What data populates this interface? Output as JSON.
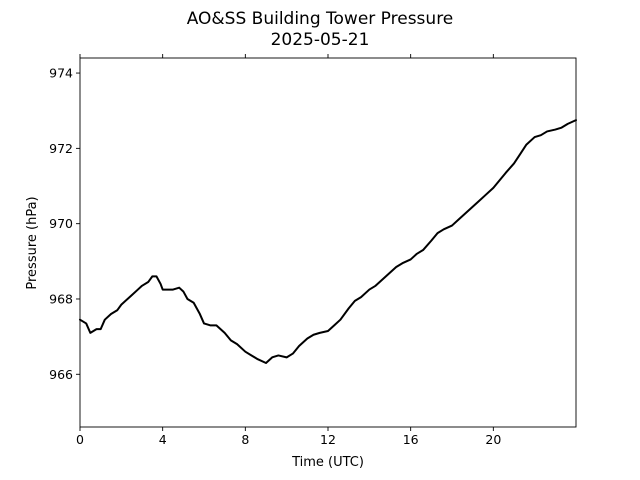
{
  "chart_data": {
    "type": "line",
    "title": "AO&SS Building Tower Pressure",
    "subtitle": "2025-05-21",
    "xlabel": "Time (UTC)",
    "ylabel": "Pressure (hPa)",
    "xlim": [
      0,
      24
    ],
    "ylim": [
      964.6,
      974.4
    ],
    "xticks": [
      0,
      4,
      8,
      12,
      16,
      20
    ],
    "yticks": [
      966,
      968,
      970,
      972,
      974
    ],
    "grid": false,
    "line_color": "#000000",
    "series": [
      {
        "x": [
          0.0,
          0.3,
          0.5,
          0.8,
          1.0,
          1.2,
          1.5,
          1.8,
          2.0,
          2.3,
          2.5,
          2.8,
          3.0,
          3.3,
          3.5,
          3.7,
          3.9,
          4.0,
          4.2,
          4.5,
          4.8,
          5.0,
          5.2,
          5.5,
          5.8,
          6.0,
          6.3,
          6.6,
          7.0,
          7.3,
          7.6,
          8.0,
          8.3,
          8.6,
          9.0,
          9.3,
          9.6,
          10.0,
          10.3,
          10.6,
          11.0,
          11.3,
          11.6,
          12.0,
          12.3,
          12.6,
          13.0,
          13.3,
          13.6,
          14.0,
          14.3,
          14.6,
          15.0,
          15.3,
          15.6,
          16.0,
          16.3,
          16.6,
          17.0,
          17.3,
          17.6,
          18.0,
          18.3,
          18.6,
          19.0,
          19.3,
          19.6,
          20.0,
          20.3,
          20.6,
          21.0,
          21.3,
          21.6,
          22.0,
          22.3,
          22.6,
          23.0,
          23.3,
          23.6,
          24.0
        ],
        "values": [
          967.45,
          967.35,
          967.1,
          967.2,
          967.2,
          967.45,
          967.6,
          967.7,
          967.85,
          968.0,
          968.1,
          968.25,
          968.35,
          968.45,
          968.6,
          968.6,
          968.4,
          968.25,
          968.25,
          968.25,
          968.3,
          968.2,
          968.0,
          967.9,
          967.6,
          967.35,
          967.3,
          967.3,
          967.1,
          966.9,
          966.8,
          966.6,
          966.5,
          966.4,
          966.3,
          966.45,
          966.5,
          966.45,
          966.55,
          966.75,
          966.95,
          967.05,
          967.1,
          967.15,
          967.3,
          967.45,
          967.75,
          967.95,
          968.05,
          968.25,
          968.35,
          968.5,
          968.7,
          968.85,
          968.95,
          969.05,
          969.2,
          969.3,
          969.55,
          969.75,
          969.85,
          969.95,
          970.1,
          970.25,
          970.45,
          970.6,
          970.75,
          970.95,
          971.15,
          971.35,
          971.6,
          971.85,
          972.1,
          972.3,
          972.35,
          972.45,
          972.5,
          972.55,
          972.65,
          972.75
        ]
      }
    ]
  }
}
